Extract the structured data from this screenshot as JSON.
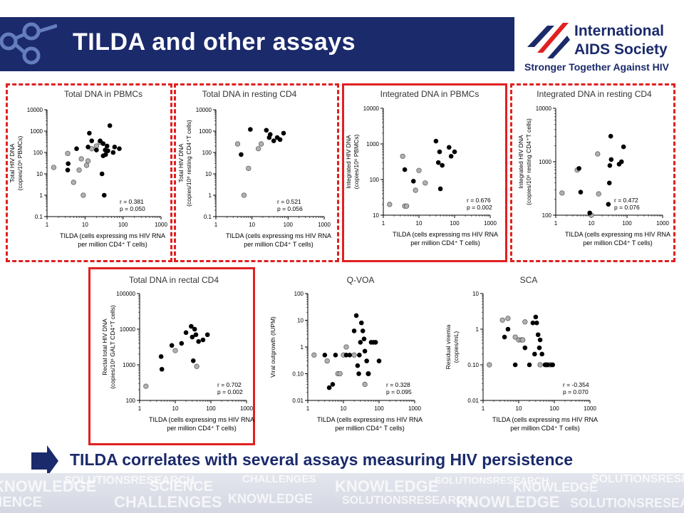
{
  "slide": {
    "title": "TILDA and other assays",
    "conclusion": "TILDA correlates with several assays measuring HIV persistence"
  },
  "logo": {
    "line1": "International",
    "line2": "AIDS Society",
    "tagline": "Stronger Together Against HIV"
  },
  "footer_watermark": [
    "KNOWLEDGE",
    "SOLUTIONSRESEARCH",
    "SCIENCE",
    "CHALLENGES",
    "KNOWLEDGE",
    "SOLUTIONSRESEARCH"
  ],
  "colors": {
    "navy": "#1b2a6b",
    "red": "#e02020",
    "grey_point": "#b0b0b0",
    "black_point": "#000000"
  },
  "xlabel_line1": "TILDA (cells expressing ms HIV RNA",
  "xlabel_line2": "per million CD4⁺ T cells)",
  "chart_data": [
    {
      "id": "p1",
      "type": "scatter",
      "title": "Total DNA in PBMCs",
      "ylabel": [
        "Total HIV DNA",
        "(copies/10⁶ PBMCs)"
      ],
      "xscale": "log",
      "xlim": [
        1,
        1000
      ],
      "xticks": [
        "1",
        "10",
        "100",
        "1000"
      ],
      "yscale": "log",
      "ylim": [
        0.1,
        10000
      ],
      "yticks": [
        "0.1",
        "1",
        "10",
        "100",
        "1000",
        "10000"
      ],
      "stats": [
        "r = 0.381",
        "p = 0.050"
      ],
      "border": "dashed",
      "points_grey": [
        [
          1.5,
          20
        ],
        [
          3.5,
          90
        ],
        [
          5,
          4
        ],
        [
          7,
          15
        ],
        [
          9,
          1
        ],
        [
          11,
          25
        ],
        [
          12,
          40
        ],
        [
          15,
          150
        ],
        [
          20,
          200
        ],
        [
          25,
          300
        ],
        [
          8,
          50
        ]
      ],
      "points_black": [
        [
          3.5,
          15
        ],
        [
          3.6,
          30
        ],
        [
          6,
          150
        ],
        [
          12,
          180
        ],
        [
          13,
          800
        ],
        [
          15,
          350
        ],
        [
          25,
          350
        ],
        [
          28,
          10
        ],
        [
          30,
          70
        ],
        [
          32,
          1
        ],
        [
          34,
          130
        ],
        [
          38,
          200
        ],
        [
          40,
          120
        ],
        [
          45,
          1800
        ],
        [
          55,
          100
        ],
        [
          60,
          180
        ],
        [
          80,
          150
        ],
        [
          30,
          260
        ],
        [
          20,
          130
        ],
        [
          35,
          80
        ]
      ]
    },
    {
      "id": "p2",
      "type": "scatter",
      "title": "Total DNA in resting CD4",
      "ylabel": [
        "Total HIV DNA",
        "(copies/10⁶ resting CD4⁺T cells)"
      ],
      "xscale": "log",
      "xlim": [
        1,
        1000
      ],
      "xticks": [
        "1",
        "10",
        "100",
        "1000"
      ],
      "yscale": "log",
      "ylim": [
        0.1,
        10000
      ],
      "yticks": [
        "0.1",
        "1",
        "10",
        "100",
        "1000",
        "10000"
      ],
      "stats": [
        "r = 0.521",
        "p = 0.056"
      ],
      "border": "dashed",
      "points_grey": [
        [
          4,
          250
        ],
        [
          6,
          1
        ],
        [
          8,
          18
        ],
        [
          15,
          150
        ],
        [
          18,
          250
        ]
      ],
      "points_black": [
        [
          5,
          80
        ],
        [
          9,
          1200
        ],
        [
          25,
          1100
        ],
        [
          30,
          500
        ],
        [
          32,
          700
        ],
        [
          40,
          350
        ],
        [
          50,
          500
        ],
        [
          60,
          400
        ],
        [
          75,
          800
        ]
      ]
    },
    {
      "id": "p3",
      "type": "scatter",
      "title": "Integrated DNA in PBMCs",
      "ylabel": [
        "Integrated HIV DNA",
        "(copies/10⁶ PBMCs)"
      ],
      "xscale": "log",
      "xlim": [
        1,
        1000
      ],
      "xticks": [
        "1",
        "10",
        "100",
        "1000"
      ],
      "yscale": "log",
      "ylim": [
        10,
        10000
      ],
      "yticks": [
        "10",
        "100",
        "1000",
        "10000"
      ],
      "stats": [
        "r = 0.676",
        "p = 0.002"
      ],
      "border": "solid",
      "points_grey": [
        [
          1.5,
          20
        ],
        [
          3.5,
          450
        ],
        [
          4,
          18
        ],
        [
          4.5,
          18
        ],
        [
          8,
          50
        ],
        [
          10,
          180
        ],
        [
          15,
          80
        ]
      ],
      "points_black": [
        [
          4,
          190
        ],
        [
          7,
          90
        ],
        [
          30,
          1200
        ],
        [
          35,
          300
        ],
        [
          38,
          600
        ],
        [
          40,
          55
        ],
        [
          45,
          250
        ],
        [
          70,
          800
        ],
        [
          80,
          450
        ],
        [
          100,
          600
        ]
      ]
    },
    {
      "id": "p4",
      "type": "scatter",
      "title": "Integrated DNA in resting CD4",
      "ylabel": [
        "Integrated HIV DNA",
        "(copies/10⁶ resting CD4⁺T cells)"
      ],
      "xscale": "log",
      "xlim": [
        1,
        1000
      ],
      "xticks": [
        "1",
        "10",
        "100",
        "1000"
      ],
      "yscale": "log",
      "ylim": [
        100,
        10000
      ],
      "yticks": [
        "100",
        "1000",
        "10000"
      ],
      "stats": [
        "r = 0.472",
        "p = 0.076"
      ],
      "border": "dashed",
      "points_grey": [
        [
          1.5,
          260
        ],
        [
          4,
          700
        ],
        [
          10,
          100
        ],
        [
          15,
          1400
        ],
        [
          16,
          250
        ]
      ],
      "points_black": [
        [
          4.5,
          750
        ],
        [
          5,
          270
        ],
        [
          9,
          110
        ],
        [
          30,
          160
        ],
        [
          32,
          400
        ],
        [
          33,
          850
        ],
        [
          35,
          3000
        ],
        [
          36,
          1100
        ],
        [
          60,
          900
        ],
        [
          70,
          1000
        ],
        [
          80,
          1900
        ]
      ]
    },
    {
      "id": "p5",
      "type": "scatter",
      "title": "Total DNA in rectal CD4",
      "ylabel": [
        "Rectal total HIV DNA",
        "(copies/10⁶ GALT CD4⁺T cells)"
      ],
      "xscale": "log",
      "xlim": [
        1,
        1000
      ],
      "xticks": [
        "1",
        "10",
        "100",
        "1000"
      ],
      "yscale": "log",
      "ylim": [
        100,
        100000
      ],
      "yticks": [
        "100",
        "1000",
        "10000",
        "100000"
      ],
      "stats": [
        "r = 0.702",
        "p = 0.002"
      ],
      "border": "solid",
      "points_grey": [
        [
          1.5,
          250
        ],
        [
          10,
          2500
        ],
        [
          40,
          900
        ]
      ],
      "points_black": [
        [
          4,
          1700
        ],
        [
          4.2,
          750
        ],
        [
          8,
          3500
        ],
        [
          15,
          4000
        ],
        [
          20,
          8000
        ],
        [
          28,
          12000
        ],
        [
          30,
          6000
        ],
        [
          32,
          1300
        ],
        [
          35,
          10000
        ],
        [
          38,
          7000
        ],
        [
          45,
          4500
        ],
        [
          60,
          5000
        ],
        [
          80,
          7000
        ]
      ]
    },
    {
      "id": "p6",
      "type": "scatter",
      "title": "Q-VOA",
      "ylabel": [
        "Viral outgrowth (IUPM)"
      ],
      "xscale": "log",
      "xlim": [
        1,
        1000
      ],
      "xticks": [
        "1",
        "10",
        "100",
        "1000"
      ],
      "yscale": "log",
      "ylim": [
        0.01,
        100
      ],
      "yticks": [
        "0.01",
        "0.10",
        "1",
        "10",
        "100"
      ],
      "stats": [
        "r = 0.328",
        "p = 0.095"
      ],
      "border": "none",
      "points_grey": [
        [
          1.5,
          0.5
        ],
        [
          3.5,
          0.3
        ],
        [
          7,
          0.1
        ],
        [
          8,
          0.1
        ],
        [
          10,
          0.5
        ],
        [
          12,
          1
        ],
        [
          20,
          0.5
        ],
        [
          40,
          0.04
        ],
        [
          50,
          0.1
        ]
      ],
      "points_black": [
        [
          3,
          0.5
        ],
        [
          4,
          0.03
        ],
        [
          5,
          0.04
        ],
        [
          6,
          0.5
        ],
        [
          12,
          0.5
        ],
        [
          15,
          0.5
        ],
        [
          20,
          4
        ],
        [
          23,
          15
        ],
        [
          25,
          0.2
        ],
        [
          27,
          0.1
        ],
        [
          28,
          0.5
        ],
        [
          30,
          1.5
        ],
        [
          32,
          8
        ],
        [
          35,
          4
        ],
        [
          38,
          2
        ],
        [
          40,
          0.7
        ],
        [
          45,
          0.3
        ],
        [
          50,
          0.1
        ],
        [
          60,
          1.5
        ],
        [
          70,
          1.5
        ],
        [
          80,
          1.5
        ],
        [
          100,
          0.3
        ]
      ]
    },
    {
      "id": "p7",
      "type": "scatter",
      "title": "SCA",
      "ylabel": [
        "Residual viremia",
        "(copies/mL)"
      ],
      "xscale": "log",
      "xlim": [
        1,
        1000
      ],
      "xticks": [
        "1",
        "10",
        "100",
        "1000"
      ],
      "yscale": "log",
      "ylim": [
        0.01,
        10
      ],
      "yticks": [
        "0.01",
        "0.10",
        "1",
        "10"
      ],
      "stats": [
        "r = -0.354",
        "p = 0.070"
      ],
      "border": "none",
      "points_grey": [
        [
          1.5,
          0.1
        ],
        [
          3.5,
          1.8
        ],
        [
          5,
          2
        ],
        [
          8,
          0.6
        ],
        [
          10,
          0.5
        ],
        [
          12,
          0.5
        ],
        [
          13,
          0.5
        ],
        [
          15,
          1.6
        ],
        [
          40,
          0.1
        ],
        [
          60,
          0.1
        ],
        [
          75,
          0.1
        ]
      ],
      "points_black": [
        [
          4,
          0.6
        ],
        [
          5,
          1
        ],
        [
          8,
          0.1
        ],
        [
          15,
          0.3
        ],
        [
          20,
          0.1
        ],
        [
          25,
          1.5
        ],
        [
          28,
          0.2
        ],
        [
          30,
          2.2
        ],
        [
          32,
          1.5
        ],
        [
          35,
          0.7
        ],
        [
          38,
          0.3
        ],
        [
          40,
          0.5
        ],
        [
          45,
          0.2
        ],
        [
          55,
          0.1
        ],
        [
          65,
          0.1
        ],
        [
          85,
          0.1
        ],
        [
          90,
          0.1
        ]
      ]
    }
  ]
}
